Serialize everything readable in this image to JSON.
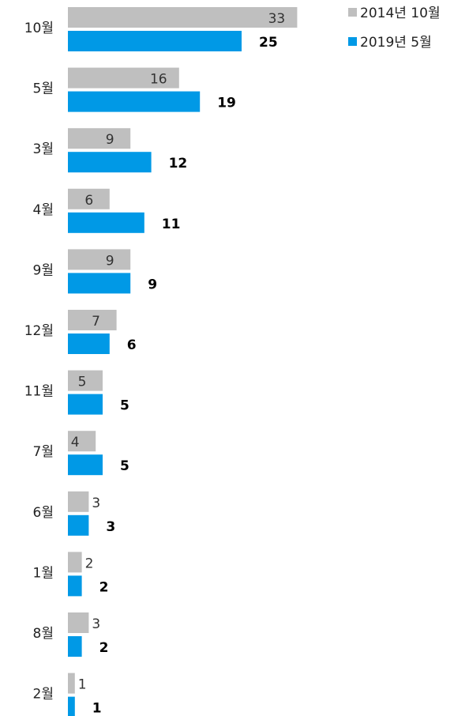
{
  "chart_data": {
    "type": "bar",
    "orientation": "horizontal",
    "categories": [
      "10월",
      "5월",
      "3월",
      "4월",
      "9월",
      "12월",
      "11월",
      "7월",
      "6월",
      "1월",
      "8월",
      "2월"
    ],
    "series": [
      {
        "name": "2014년 10월",
        "color": "#bfbfbf",
        "values": [
          33,
          16,
          9,
          6,
          9,
          7,
          5,
          4,
          3,
          2,
          3,
          1
        ]
      },
      {
        "name": "2019년 5월",
        "color": "#0099e6",
        "values": [
          25,
          19,
          12,
          11,
          9,
          6,
          5,
          5,
          3,
          2,
          2,
          1
        ]
      }
    ],
    "legend_position": "top-right",
    "grid": false
  }
}
